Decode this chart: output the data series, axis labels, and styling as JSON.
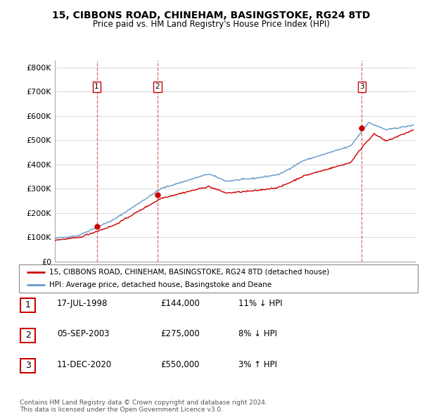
{
  "title": "15, CIBBONS ROAD, CHINEHAM, BASINGSTOKE, RG24 8TD",
  "subtitle": "Price paid vs. HM Land Registry's House Price Index (HPI)",
  "ylabel_ticks": [
    "£0",
    "£100K",
    "£200K",
    "£300K",
    "£400K",
    "£500K",
    "£600K",
    "£700K",
    "£800K"
  ],
  "ytick_values": [
    0,
    100000,
    200000,
    300000,
    400000,
    500000,
    600000,
    700000,
    800000
  ],
  "ylim": [
    0,
    830000
  ],
  "xlim_start": 1995.0,
  "xlim_end": 2025.5,
  "legend_line1": "15, CIBBONS ROAD, CHINEHAM, BASINGSTOKE, RG24 8TD (detached house)",
  "legend_line2": "HPI: Average price, detached house, Basingstoke and Deane",
  "sale_dates": [
    1998.54,
    2003.67,
    2020.95
  ],
  "sale_prices": [
    144000,
    275000,
    550000
  ],
  "sale_labels": [
    "1",
    "2",
    "3"
  ],
  "table_rows": [
    [
      "1",
      "17-JUL-1998",
      "£144,000",
      "11% ↓ HPI"
    ],
    [
      "2",
      "05-SEP-2003",
      "£275,000",
      "8% ↓ HPI"
    ],
    [
      "3",
      "11-DEC-2020",
      "£550,000",
      "3% ↑ HPI"
    ]
  ],
  "footer": "Contains HM Land Registry data © Crown copyright and database right 2024.\nThis data is licensed under the Open Government Licence v3.0.",
  "red_color": "#cc0000",
  "blue_color": "#6699cc",
  "background_color": "#ffffff",
  "grid_color": "#dddddd"
}
